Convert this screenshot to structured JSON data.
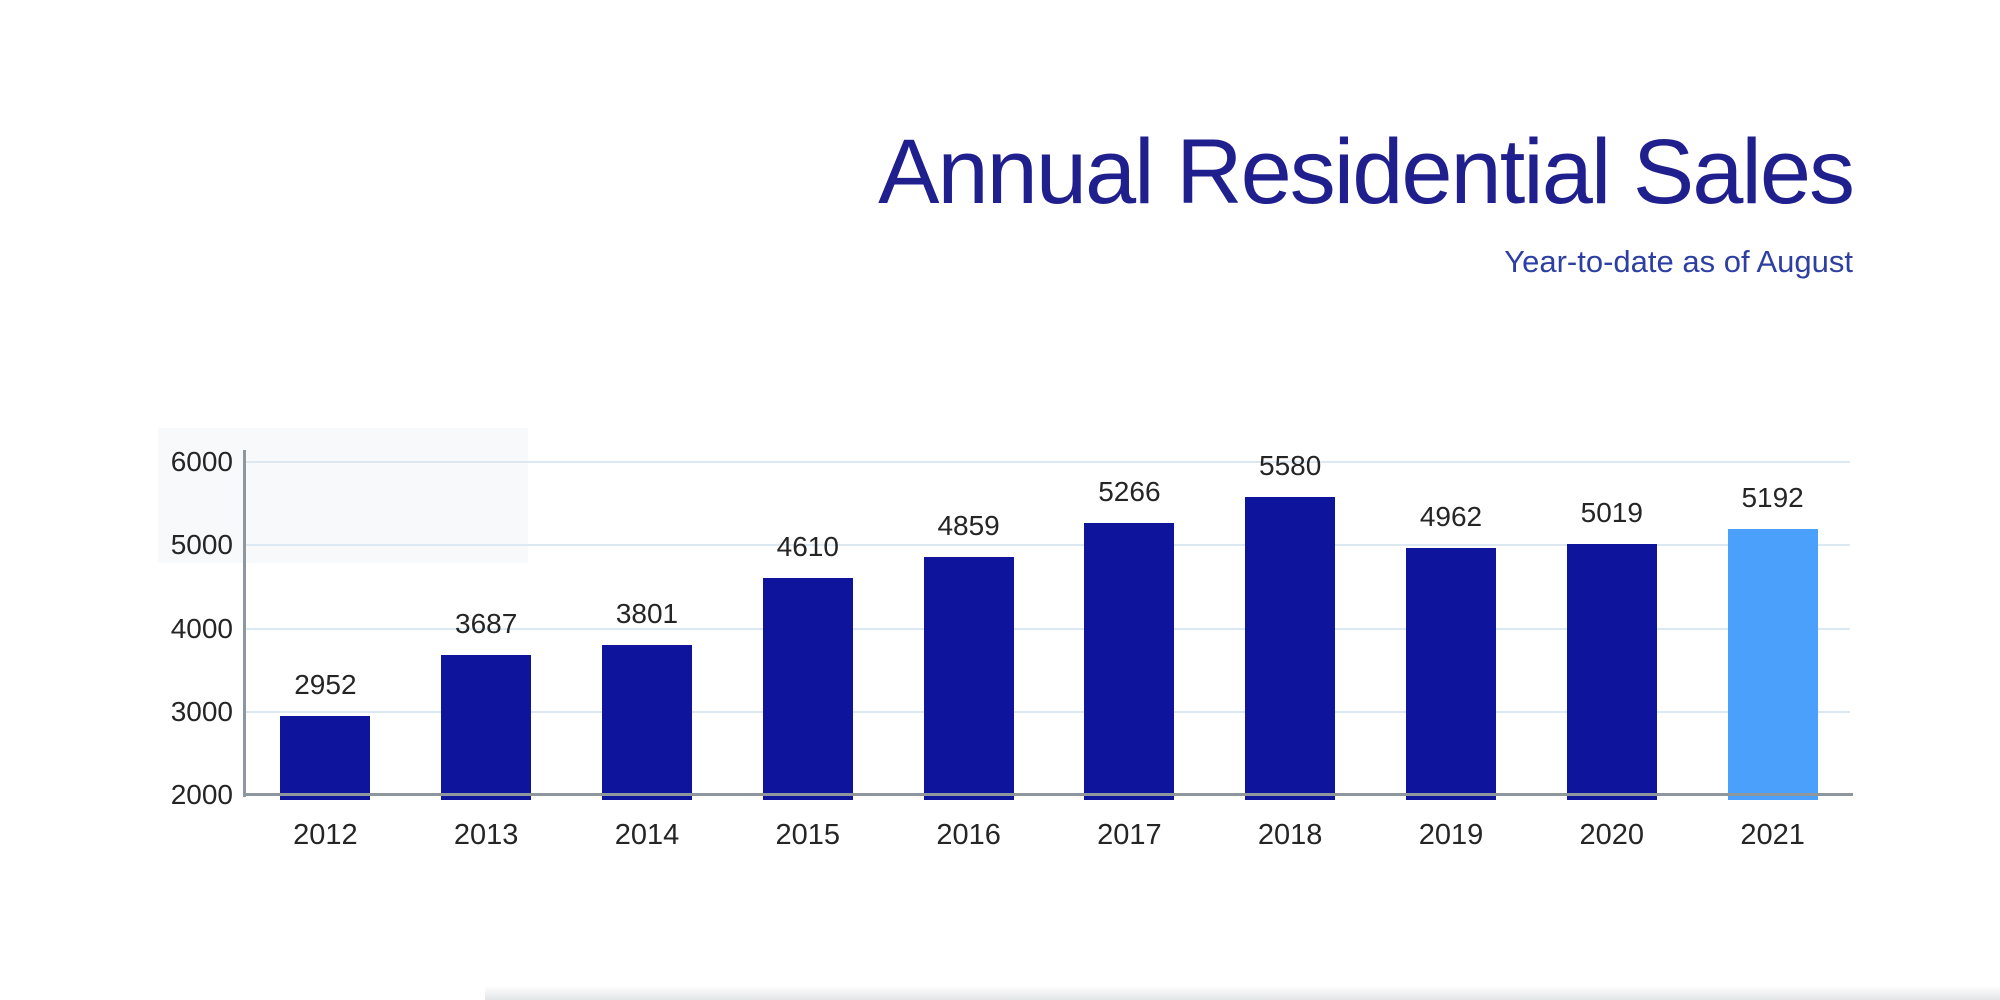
{
  "header": {
    "title": "Annual Residential Sales",
    "subtitle": "Year-to-date as of August",
    "title_color": "#201f8e",
    "subtitle_color": "#2e3fa3"
  },
  "chart_data": {
    "type": "bar",
    "title": "Annual Residential Sales",
    "subtitle": "Year-to-date as of August",
    "categories": [
      "2012",
      "2013",
      "2014",
      "2015",
      "2016",
      "2017",
      "2018",
      "2019",
      "2020",
      "2021"
    ],
    "values": [
      2952,
      3687,
      3801,
      4610,
      4859,
      5266,
      5580,
      4962,
      5019,
      5192
    ],
    "bar_value_labels": [
      "2952",
      "3687",
      "3801",
      "4610",
      "4859",
      "5266",
      "5580",
      "4962",
      "5019",
      "5192"
    ],
    "highlight_index": 9,
    "xlabel": "",
    "ylabel": "",
    "y_axis": {
      "min": 2000,
      "max": 6000,
      "ticks": [
        2000,
        3000,
        4000,
        5000,
        6000
      ],
      "tick_labels": [
        "2000",
        "3000",
        "4000",
        "5000",
        "6000"
      ]
    },
    "grid": true,
    "legend": "none",
    "colors": {
      "bar": "#0e149b",
      "bar_highlight": "#4aa0fa",
      "gridline": "#dde9f2",
      "axis": "#8f979e",
      "label_text": "#252525"
    }
  }
}
